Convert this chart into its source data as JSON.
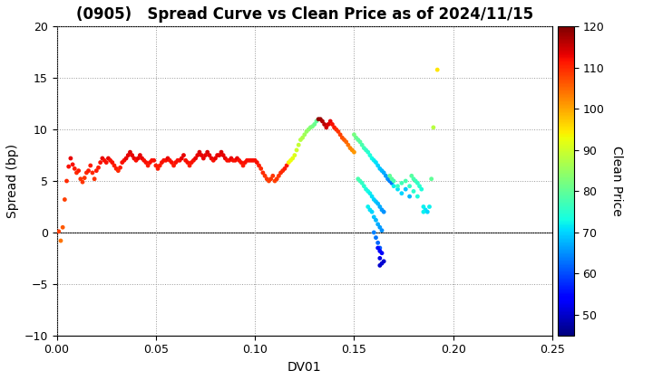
{
  "title": "(0905)   Spread Curve vs Clean Price as of 2024/11/15",
  "xlabel": "DV01",
  "ylabel": "Spread (bp)",
  "colorbar_label": "Clean Price",
  "xlim": [
    0.0,
    0.25
  ],
  "ylim": [
    -10.0,
    20.0
  ],
  "cmap_vmin": 45,
  "cmap_vmax": 120,
  "cbar_ticks": [
    50,
    60,
    70,
    80,
    90,
    100,
    110,
    120
  ],
  "xticks": [
    0.0,
    0.05,
    0.1,
    0.15,
    0.2,
    0.25
  ],
  "yticks": [
    -10.0,
    -5.0,
    0.0,
    5.0,
    10.0,
    15.0,
    20.0
  ],
  "points": [
    [
      0.001,
      0.1,
      108
    ],
    [
      0.002,
      -0.8,
      104
    ],
    [
      0.003,
      0.5,
      106
    ],
    [
      0.004,
      3.2,
      108
    ],
    [
      0.005,
      5.0,
      110
    ],
    [
      0.006,
      6.4,
      112
    ],
    [
      0.007,
      7.2,
      113
    ],
    [
      0.008,
      6.6,
      112
    ],
    [
      0.009,
      6.2,
      111
    ],
    [
      0.01,
      5.8,
      110
    ],
    [
      0.011,
      6.0,
      111
    ],
    [
      0.012,
      5.2,
      109
    ],
    [
      0.013,
      4.9,
      109
    ],
    [
      0.014,
      5.3,
      109
    ],
    [
      0.015,
      5.8,
      110
    ],
    [
      0.016,
      6.0,
      111
    ],
    [
      0.017,
      6.5,
      111
    ],
    [
      0.018,
      5.8,
      110
    ],
    [
      0.019,
      5.2,
      109
    ],
    [
      0.02,
      6.0,
      111
    ],
    [
      0.021,
      6.3,
      111
    ],
    [
      0.022,
      6.8,
      112
    ],
    [
      0.023,
      7.2,
      113
    ],
    [
      0.024,
      7.0,
      112
    ],
    [
      0.025,
      6.8,
      112
    ],
    [
      0.026,
      7.2,
      113
    ],
    [
      0.027,
      7.0,
      112
    ],
    [
      0.028,
      6.8,
      112
    ],
    [
      0.029,
      6.5,
      111
    ],
    [
      0.03,
      6.2,
      111
    ],
    [
      0.031,
      6.0,
      110
    ],
    [
      0.032,
      6.3,
      111
    ],
    [
      0.033,
      6.8,
      112
    ],
    [
      0.034,
      7.0,
      112
    ],
    [
      0.035,
      7.2,
      113
    ],
    [
      0.036,
      7.5,
      113
    ],
    [
      0.037,
      7.8,
      114
    ],
    [
      0.038,
      7.5,
      113
    ],
    [
      0.039,
      7.2,
      113
    ],
    [
      0.04,
      7.0,
      112
    ],
    [
      0.041,
      7.2,
      113
    ],
    [
      0.042,
      7.5,
      113
    ],
    [
      0.043,
      7.2,
      113
    ],
    [
      0.044,
      7.0,
      112
    ],
    [
      0.045,
      6.8,
      112
    ],
    [
      0.046,
      6.5,
      111
    ],
    [
      0.047,
      6.8,
      112
    ],
    [
      0.048,
      7.0,
      112
    ],
    [
      0.049,
      7.0,
      112
    ],
    [
      0.05,
      6.5,
      111
    ],
    [
      0.051,
      6.2,
      111
    ],
    [
      0.052,
      6.5,
      111
    ],
    [
      0.053,
      6.8,
      112
    ],
    [
      0.054,
      7.0,
      112
    ],
    [
      0.055,
      7.0,
      112
    ],
    [
      0.056,
      7.2,
      113
    ],
    [
      0.057,
      7.0,
      112
    ],
    [
      0.058,
      6.8,
      112
    ],
    [
      0.059,
      6.5,
      111
    ],
    [
      0.06,
      6.8,
      112
    ],
    [
      0.061,
      7.0,
      112
    ],
    [
      0.062,
      7.0,
      112
    ],
    [
      0.063,
      7.2,
      113
    ],
    [
      0.064,
      7.5,
      113
    ],
    [
      0.065,
      7.0,
      112
    ],
    [
      0.066,
      6.8,
      112
    ],
    [
      0.067,
      6.5,
      111
    ],
    [
      0.068,
      6.8,
      112
    ],
    [
      0.069,
      7.0,
      112
    ],
    [
      0.07,
      7.2,
      113
    ],
    [
      0.071,
      7.5,
      113
    ],
    [
      0.072,
      7.8,
      114
    ],
    [
      0.073,
      7.5,
      113
    ],
    [
      0.074,
      7.2,
      113
    ],
    [
      0.075,
      7.5,
      113
    ],
    [
      0.076,
      7.8,
      114
    ],
    [
      0.077,
      7.5,
      113
    ],
    [
      0.078,
      7.2,
      113
    ],
    [
      0.079,
      7.0,
      112
    ],
    [
      0.08,
      7.2,
      113
    ],
    [
      0.081,
      7.5,
      113
    ],
    [
      0.082,
      7.5,
      113
    ],
    [
      0.083,
      7.8,
      114
    ],
    [
      0.084,
      7.5,
      113
    ],
    [
      0.085,
      7.2,
      113
    ],
    [
      0.086,
      7.0,
      112
    ],
    [
      0.087,
      7.0,
      112
    ],
    [
      0.088,
      7.2,
      113
    ],
    [
      0.089,
      7.0,
      112
    ],
    [
      0.09,
      7.0,
      112
    ],
    [
      0.091,
      7.2,
      113
    ],
    [
      0.092,
      7.0,
      112
    ],
    [
      0.093,
      6.8,
      112
    ],
    [
      0.094,
      6.5,
      111
    ],
    [
      0.095,
      6.8,
      112
    ],
    [
      0.096,
      7.0,
      112
    ],
    [
      0.097,
      7.0,
      112
    ],
    [
      0.098,
      7.0,
      112
    ],
    [
      0.099,
      7.0,
      112
    ],
    [
      0.1,
      7.0,
      112
    ],
    [
      0.101,
      6.8,
      112
    ],
    [
      0.102,
      6.5,
      111
    ],
    [
      0.103,
      6.2,
      110
    ],
    [
      0.104,
      5.8,
      110
    ],
    [
      0.105,
      5.5,
      109
    ],
    [
      0.106,
      5.2,
      109
    ],
    [
      0.107,
      5.0,
      108
    ],
    [
      0.108,
      5.2,
      109
    ],
    [
      0.109,
      5.5,
      109
    ],
    [
      0.11,
      5.0,
      108
    ],
    [
      0.111,
      5.2,
      109
    ],
    [
      0.112,
      5.5,
      109
    ],
    [
      0.113,
      5.8,
      110
    ],
    [
      0.114,
      6.0,
      110
    ],
    [
      0.115,
      6.2,
      111
    ],
    [
      0.116,
      6.5,
      111
    ],
    [
      0.117,
      6.8,
      94
    ],
    [
      0.118,
      7.0,
      93
    ],
    [
      0.119,
      7.2,
      92
    ],
    [
      0.12,
      7.5,
      91
    ],
    [
      0.121,
      8.0,
      90
    ],
    [
      0.122,
      8.5,
      89
    ],
    [
      0.123,
      9.0,
      88
    ],
    [
      0.124,
      9.2,
      87
    ],
    [
      0.125,
      9.5,
      86
    ],
    [
      0.126,
      9.8,
      85
    ],
    [
      0.127,
      10.0,
      84
    ],
    [
      0.128,
      10.2,
      83
    ],
    [
      0.129,
      10.3,
      82
    ],
    [
      0.13,
      10.5,
      81
    ],
    [
      0.131,
      10.8,
      80
    ],
    [
      0.132,
      11.0,
      119
    ],
    [
      0.133,
      11.0,
      118
    ],
    [
      0.134,
      10.8,
      117
    ],
    [
      0.135,
      10.5,
      116
    ],
    [
      0.136,
      10.2,
      115
    ],
    [
      0.137,
      10.5,
      114
    ],
    [
      0.138,
      10.8,
      113
    ],
    [
      0.139,
      10.5,
      112
    ],
    [
      0.14,
      10.2,
      111
    ],
    [
      0.141,
      10.0,
      110
    ],
    [
      0.142,
      9.8,
      109
    ],
    [
      0.143,
      9.5,
      108
    ],
    [
      0.144,
      9.2,
      107
    ],
    [
      0.145,
      9.0,
      106
    ],
    [
      0.146,
      8.8,
      105
    ],
    [
      0.147,
      8.5,
      104
    ],
    [
      0.148,
      8.2,
      103
    ],
    [
      0.149,
      8.0,
      102
    ],
    [
      0.15,
      7.8,
      101
    ],
    [
      0.15,
      9.5,
      82
    ],
    [
      0.151,
      9.2,
      81
    ],
    [
      0.152,
      9.0,
      80
    ],
    [
      0.153,
      8.8,
      79
    ],
    [
      0.154,
      8.5,
      78
    ],
    [
      0.155,
      8.2,
      77
    ],
    [
      0.156,
      8.0,
      76
    ],
    [
      0.157,
      7.8,
      75
    ],
    [
      0.158,
      7.5,
      74
    ],
    [
      0.159,
      7.2,
      73
    ],
    [
      0.16,
      7.0,
      72
    ],
    [
      0.161,
      6.8,
      71
    ],
    [
      0.162,
      6.5,
      70
    ],
    [
      0.163,
      6.2,
      69
    ],
    [
      0.164,
      6.0,
      68
    ],
    [
      0.165,
      5.8,
      67
    ],
    [
      0.166,
      5.5,
      66
    ],
    [
      0.167,
      5.2,
      65
    ],
    [
      0.168,
      5.0,
      64
    ],
    [
      0.169,
      4.8,
      63
    ],
    [
      0.152,
      5.2,
      78
    ],
    [
      0.153,
      5.0,
      77
    ],
    [
      0.154,
      4.8,
      76
    ],
    [
      0.155,
      4.5,
      75
    ],
    [
      0.156,
      4.2,
      74
    ],
    [
      0.157,
      4.0,
      73
    ],
    [
      0.158,
      3.8,
      72
    ],
    [
      0.159,
      3.5,
      71
    ],
    [
      0.16,
      3.2,
      70
    ],
    [
      0.161,
      3.0,
      69
    ],
    [
      0.162,
      2.8,
      68
    ],
    [
      0.163,
      2.5,
      67
    ],
    [
      0.164,
      2.2,
      66
    ],
    [
      0.165,
      2.0,
      65
    ],
    [
      0.157,
      2.5,
      72
    ],
    [
      0.158,
      2.2,
      71
    ],
    [
      0.159,
      2.0,
      70
    ],
    [
      0.16,
      1.5,
      69
    ],
    [
      0.161,
      1.2,
      68
    ],
    [
      0.162,
      0.8,
      67
    ],
    [
      0.163,
      0.5,
      66
    ],
    [
      0.164,
      0.2,
      65
    ],
    [
      0.16,
      0.0,
      64
    ],
    [
      0.161,
      -0.5,
      63
    ],
    [
      0.162,
      -1.0,
      62
    ],
    [
      0.163,
      -1.5,
      61
    ],
    [
      0.162,
      -1.5,
      55
    ],
    [
      0.163,
      -1.8,
      54
    ],
    [
      0.164,
      -2.0,
      53
    ],
    [
      0.163,
      -2.5,
      52
    ],
    [
      0.164,
      -3.0,
      51
    ],
    [
      0.163,
      -3.2,
      50
    ],
    [
      0.165,
      -2.8,
      50
    ],
    [
      0.17,
      4.5,
      72
    ],
    [
      0.172,
      4.2,
      71
    ],
    [
      0.174,
      3.8,
      70
    ],
    [
      0.176,
      4.2,
      69
    ],
    [
      0.178,
      3.5,
      68
    ],
    [
      0.179,
      5.5,
      79
    ],
    [
      0.18,
      5.2,
      78
    ],
    [
      0.181,
      5.0,
      77
    ],
    [
      0.182,
      4.8,
      76
    ],
    [
      0.183,
      4.5,
      75
    ],
    [
      0.184,
      4.2,
      74
    ],
    [
      0.185,
      2.5,
      72
    ],
    [
      0.186,
      2.2,
      71
    ],
    [
      0.187,
      2.0,
      70
    ],
    [
      0.188,
      2.5,
      72
    ],
    [
      0.189,
      5.2,
      80
    ],
    [
      0.19,
      10.2,
      88
    ],
    [
      0.192,
      15.8,
      95
    ],
    [
      0.168,
      5.5,
      80
    ],
    [
      0.169,
      5.2,
      79
    ],
    [
      0.17,
      5.0,
      78
    ],
    [
      0.172,
      4.5,
      76
    ],
    [
      0.174,
      4.8,
      77
    ],
    [
      0.176,
      5.0,
      78
    ],
    [
      0.178,
      4.5,
      76
    ],
    [
      0.18,
      4.0,
      75
    ],
    [
      0.182,
      3.5,
      74
    ],
    [
      0.185,
      2.0,
      72
    ]
  ],
  "background_color": "#ffffff",
  "grid_color": "#999999",
  "title_fontsize": 12,
  "axis_fontsize": 10,
  "marker_size": 12
}
